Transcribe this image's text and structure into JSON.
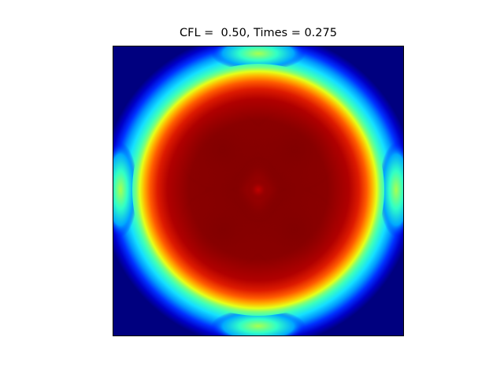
{
  "chart_data": {
    "type": "heatmap",
    "title": "CFL =  0.50, Times = 0.275",
    "xlabel": "",
    "ylabel": "",
    "colormap": "jet",
    "colors": {
      "low": "#00007f",
      "high": "#7f0000"
    },
    "axes_ticks_visible": false,
    "grid": false,
    "legend": "none",
    "field_description_values": {
      "background_level": 0.0,
      "ring_level": 0.45,
      "ring_edge_hotspot_level": 0.45,
      "interior_level": 0.97,
      "center_peak_level": 1.0
    }
  }
}
